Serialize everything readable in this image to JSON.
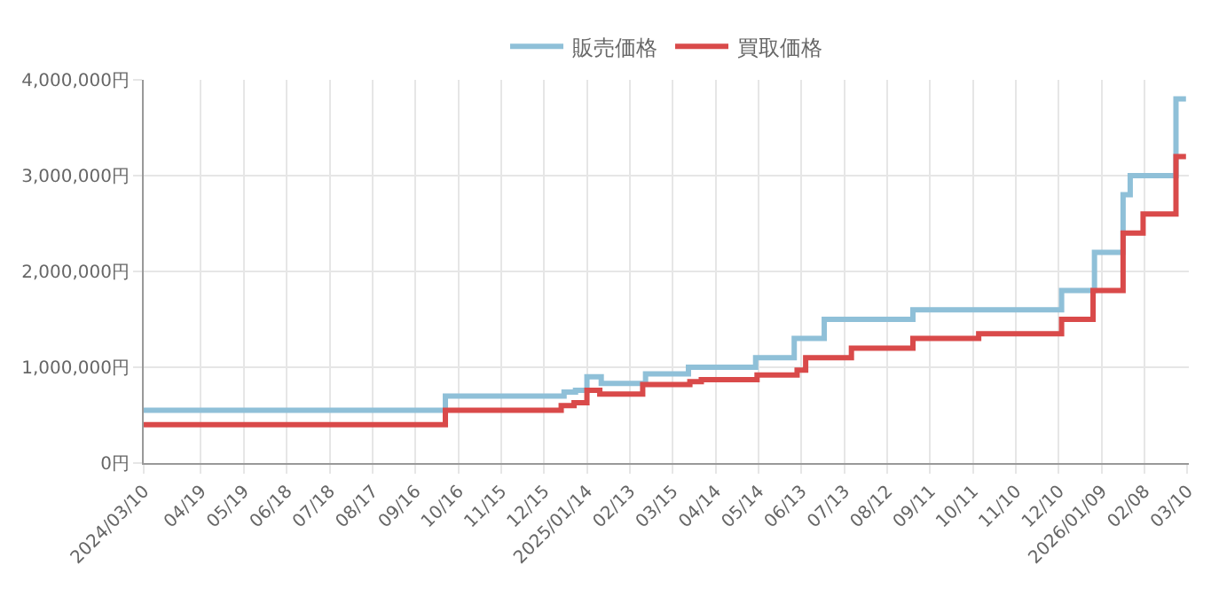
{
  "chart_data": {
    "type": "step",
    "legend": "top",
    "grid": true,
    "line_style": "solid",
    "marker": "none",
    "xlim": [
      "2024-03-10",
      "2026-03-11"
    ],
    "xticks": [
      {
        "value": "2024-03-10",
        "label": "2024/03/10"
      },
      {
        "value": "2024-04-19",
        "label": "04/19"
      },
      {
        "value": "2024-05-19",
        "label": "05/19"
      },
      {
        "value": "2024-06-18",
        "label": "06/18"
      },
      {
        "value": "2024-07-18",
        "label": "07/18"
      },
      {
        "value": "2024-08-17",
        "label": "08/17"
      },
      {
        "value": "2024-09-16",
        "label": "09/16"
      },
      {
        "value": "2024-10-16",
        "label": "10/16"
      },
      {
        "value": "2024-11-15",
        "label": "11/15"
      },
      {
        "value": "2024-12-15",
        "label": "12/15"
      },
      {
        "value": "2025-01-14",
        "label": "2025/01/14"
      },
      {
        "value": "2025-02-13",
        "label": "02/13"
      },
      {
        "value": "2025-03-15",
        "label": "03/15"
      },
      {
        "value": "2025-04-14",
        "label": "04/14"
      },
      {
        "value": "2025-05-14",
        "label": "05/14"
      },
      {
        "value": "2025-06-13",
        "label": "06/13"
      },
      {
        "value": "2025-07-13",
        "label": "07/13"
      },
      {
        "value": "2025-08-12",
        "label": "08/12"
      },
      {
        "value": "2025-09-11",
        "label": "09/11"
      },
      {
        "value": "2025-10-11",
        "label": "10/11"
      },
      {
        "value": "2025-11-10",
        "label": "11/10"
      },
      {
        "value": "2025-12-10",
        "label": "12/10"
      },
      {
        "value": "2026-01-09",
        "label": "2026/01/09"
      },
      {
        "value": "2026-02-08",
        "label": "02/08"
      },
      {
        "value": "2026-03-10",
        "label": "03/10"
      }
    ],
    "ylim": [
      0,
      4000000
    ],
    "yticks": [
      {
        "value": 0,
        "label": "0円"
      },
      {
        "value": 1000000,
        "label": "1,000,000円"
      },
      {
        "value": 2000000,
        "label": "2,000,000円"
      },
      {
        "value": 3000000,
        "label": "3,000,000円"
      },
      {
        "value": 4000000,
        "label": "4,000,000円"
      }
    ],
    "series": [
      {
        "name": "販売価格",
        "color": "#8fc0d8",
        "x": [
          "2024-03-10",
          "2024-10-07",
          "2024-12-29",
          "2025-01-06",
          "2025-01-14",
          "2025-01-24",
          "2025-02-24",
          "2025-03-26",
          "2025-05-12",
          "2025-06-08",
          "2025-06-29",
          "2025-08-30",
          "2025-12-12",
          "2026-01-04",
          "2026-01-24",
          "2026-01-29",
          "2026-03-02",
          "2026-03-09"
        ],
        "values": [
          550000,
          700000,
          740000,
          760000,
          900000,
          830000,
          930000,
          1000000,
          1100000,
          1300000,
          1500000,
          1600000,
          1800000,
          2200000,
          2800000,
          3000000,
          3800000,
          3800000
        ]
      },
      {
        "name": "買取価格",
        "color": "#d94a4a",
        "x": [
          "2024-03-10",
          "2024-10-07",
          "2024-12-27",
          "2025-01-05",
          "2025-01-14",
          "2025-01-23",
          "2025-02-22",
          "2025-03-27",
          "2025-04-04",
          "2025-05-13",
          "2025-06-10",
          "2025-06-16",
          "2025-07-18",
          "2025-08-30",
          "2025-10-15",
          "2025-12-12",
          "2026-01-03",
          "2026-01-24",
          "2026-02-07",
          "2026-03-02",
          "2026-03-09"
        ],
        "values": [
          400000,
          550000,
          600000,
          630000,
          760000,
          720000,
          820000,
          850000,
          870000,
          920000,
          970000,
          1100000,
          1200000,
          1300000,
          1350000,
          1500000,
          1800000,
          2400000,
          2600000,
          3200000,
          3200000
        ]
      }
    ]
  }
}
